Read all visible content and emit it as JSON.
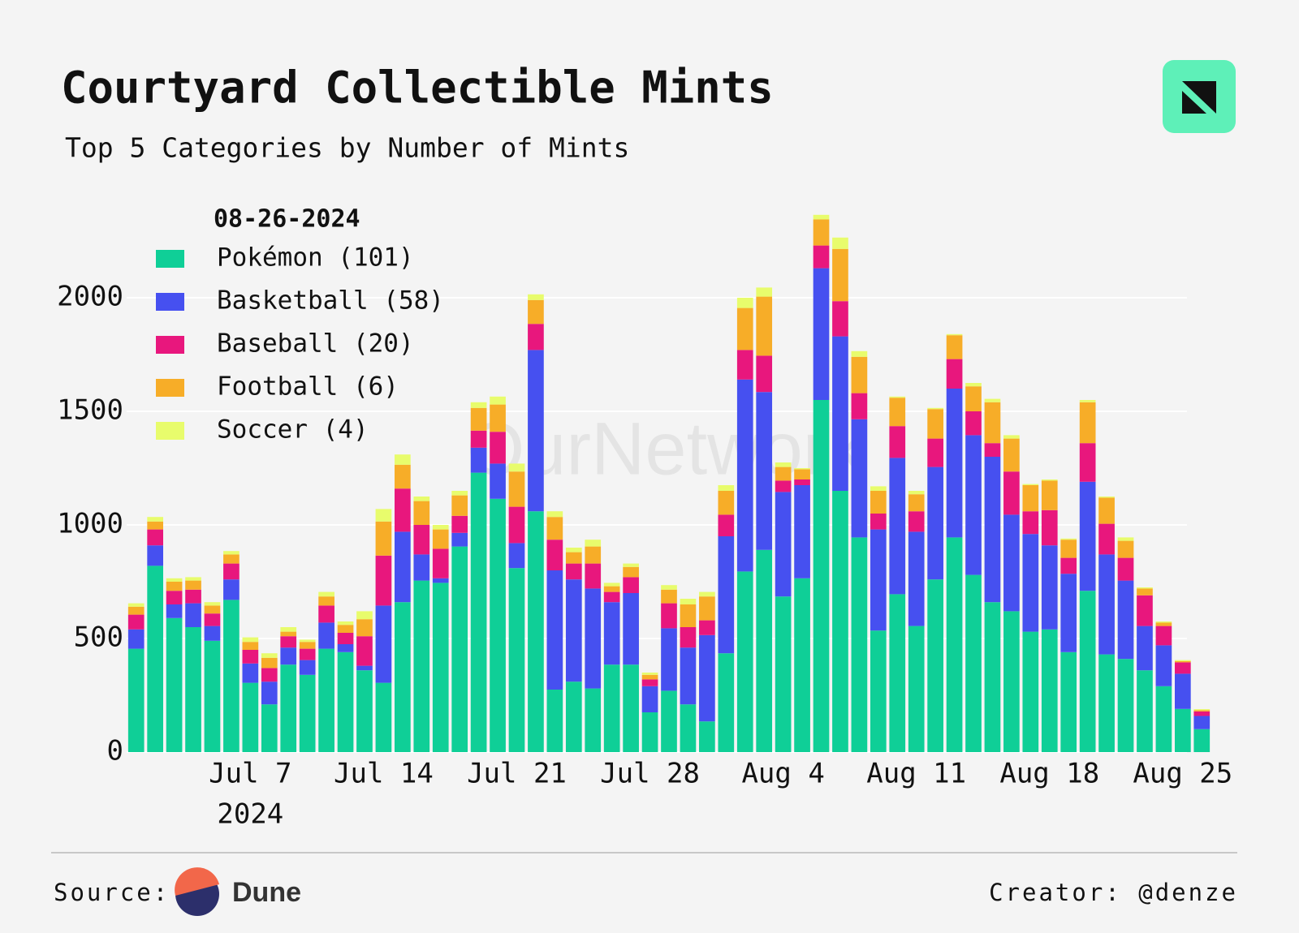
{
  "chart_data": {
    "type": "stacked_bar",
    "title": "Courtyard Collectible Mints",
    "subtitle": "Top 5 Categories by Number of Mints",
    "legend_title": "08-26-2024",
    "legend_position": "upper left",
    "watermark": "OurNetwork",
    "categories": [
      null,
      null,
      null,
      null,
      null,
      null,
      "Jul 7",
      null,
      null,
      null,
      null,
      null,
      null,
      "Jul 14",
      null,
      null,
      null,
      null,
      null,
      null,
      "Jul 21",
      null,
      null,
      null,
      null,
      null,
      null,
      "Jul 28",
      null,
      null,
      null,
      null,
      null,
      null,
      "Aug 4",
      null,
      null,
      null,
      null,
      null,
      null,
      "Aug 11",
      null,
      null,
      null,
      null,
      null,
      null,
      "Aug 18",
      null,
      null,
      null,
      null,
      null,
      null,
      "Aug 25",
      null
    ],
    "x_year_label": "2024",
    "series": [
      {
        "name": "Pokémon (101)",
        "color": "#0fcf97",
        "values": [
          455,
          820,
          590,
          550,
          490,
          670,
          305,
          210,
          385,
          340,
          455,
          440,
          360,
          305,
          660,
          755,
          745,
          905,
          1230,
          1115,
          810,
          1060,
          275,
          310,
          280,
          385,
          385,
          175,
          270,
          210,
          135,
          435,
          795,
          890,
          685,
          765,
          1550,
          1150,
          945,
          535,
          695,
          555,
          760,
          945,
          780,
          660,
          620,
          530,
          540,
          440,
          710,
          430,
          410,
          360,
          290,
          190,
          101
        ]
      },
      {
        "name": "Basketball (58)",
        "color": "#4650f0",
        "values": [
          85,
          90,
          60,
          105,
          65,
          90,
          85,
          100,
          75,
          65,
          115,
          35,
          20,
          340,
          310,
          115,
          20,
          60,
          110,
          155,
          110,
          710,
          525,
          450,
          440,
          275,
          315,
          115,
          275,
          250,
          380,
          515,
          845,
          695,
          460,
          410,
          580,
          680,
          520,
          445,
          600,
          415,
          495,
          655,
          615,
          640,
          425,
          430,
          370,
          345,
          480,
          440,
          345,
          195,
          180,
          155,
          58
        ]
      },
      {
        "name": "Baseball (20)",
        "color": "#e8177d",
        "values": [
          65,
          70,
          60,
          60,
          55,
          70,
          60,
          60,
          50,
          50,
          75,
          50,
          130,
          220,
          190,
          130,
          130,
          75,
          75,
          140,
          160,
          115,
          135,
          70,
          110,
          45,
          70,
          30,
          110,
          90,
          65,
          95,
          130,
          160,
          50,
          25,
          100,
          155,
          115,
          70,
          140,
          90,
          125,
          130,
          105,
          60,
          190,
          100,
          155,
          70,
          170,
          135,
          100,
          135,
          85,
          50,
          20
        ]
      },
      {
        "name": "Football (6)",
        "color": "#f7ad28",
        "values": [
          35,
          35,
          40,
          40,
          35,
          40,
          35,
          45,
          20,
          30,
          40,
          35,
          75,
          150,
          105,
          105,
          85,
          90,
          100,
          120,
          155,
          105,
          100,
          50,
          75,
          25,
          45,
          20,
          60,
          100,
          105,
          105,
          185,
          260,
          60,
          45,
          115,
          230,
          160,
          100,
          125,
          75,
          130,
          105,
          110,
          180,
          145,
          115,
          130,
          80,
          180,
          115,
          75,
          30,
          15,
          5,
          6
        ]
      },
      {
        "name": "Soccer (4)",
        "color": "#e8fc6c",
        "values": [
          15,
          20,
          15,
          15,
          15,
          15,
          20,
          20,
          20,
          10,
          20,
          15,
          35,
          55,
          45,
          20,
          20,
          20,
          25,
          35,
          35,
          25,
          25,
          20,
          30,
          15,
          15,
          10,
          20,
          25,
          20,
          25,
          45,
          40,
          20,
          5,
          20,
          50,
          25,
          20,
          5,
          15,
          5,
          5,
          15,
          15,
          15,
          5,
          5,
          5,
          10,
          5,
          15,
          5,
          5,
          5,
          4
        ]
      }
    ],
    "ylim": [
      0,
      2400
    ],
    "yticks": [
      0,
      500,
      1000,
      1500,
      2000
    ],
    "grid": true
  },
  "footer": {
    "source_label": "Source:",
    "source_name": "Dune",
    "creator": "Creator: @denze"
  }
}
